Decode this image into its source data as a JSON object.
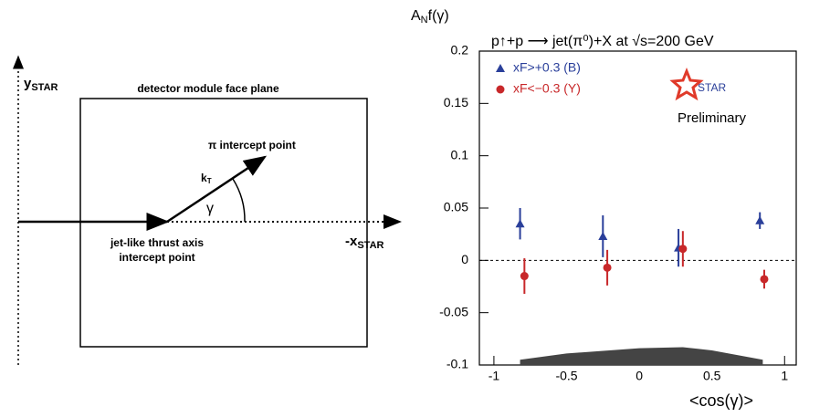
{
  "diagram": {
    "frame_title": "detector module face plane",
    "y_axis": {
      "main": "y",
      "sub": "STAR"
    },
    "x_axis": {
      "main": "-x",
      "sub": "STAR"
    },
    "vector": {
      "main": "k",
      "sub": "T"
    },
    "angle": "γ",
    "pi_point": "π intercept point",
    "jet_point": [
      "jet-like thrust axis",
      "intercept point"
    ]
  },
  "chart_data": {
    "type": "scatter",
    "title": "p↑+p ⟶ jet(π⁰)+X at √s=200 GeV",
    "y_label": {
      "main": "A",
      "sub": "N",
      "rest": "f(γ)"
    },
    "x_label": "<cos(γ)>",
    "annotations": [
      "STAR",
      "Preliminary"
    ],
    "xlim": [
      -1.1,
      1.08
    ],
    "ylim": [
      -0.1,
      0.2
    ],
    "xticks": [
      -1,
      -0.5,
      0,
      0.5,
      1
    ],
    "yticks": [
      -0.1,
      -0.05,
      0,
      0.05,
      0.1,
      0.15,
      0.2
    ],
    "zero_line": true,
    "series": [
      {
        "name": "xF>+0.3 (B)",
        "color": "#2a3f9a",
        "marker": "triangle",
        "x": [
          -0.82,
          -0.25,
          0.27,
          0.83
        ],
        "values": [
          0.035,
          0.023,
          0.012,
          0.038
        ],
        "errors": [
          0.015,
          0.02,
          0.018,
          0.008
        ]
      },
      {
        "name": "xF<−0.3 (Y)",
        "color": "#c8282a",
        "marker": "circle",
        "x": [
          -0.79,
          -0.22,
          0.3,
          0.86
        ],
        "values": [
          -0.015,
          -0.007,
          0.011,
          -0.018
        ],
        "errors": [
          0.017,
          0.017,
          0.017,
          0.009
        ]
      }
    ],
    "band": {
      "color": "#444444",
      "x": [
        -0.82,
        -0.5,
        0,
        0.3,
        0.5,
        0.85
      ],
      "values": [
        -0.095,
        -0.089,
        -0.084,
        -0.083,
        -0.086,
        -0.095
      ]
    }
  }
}
